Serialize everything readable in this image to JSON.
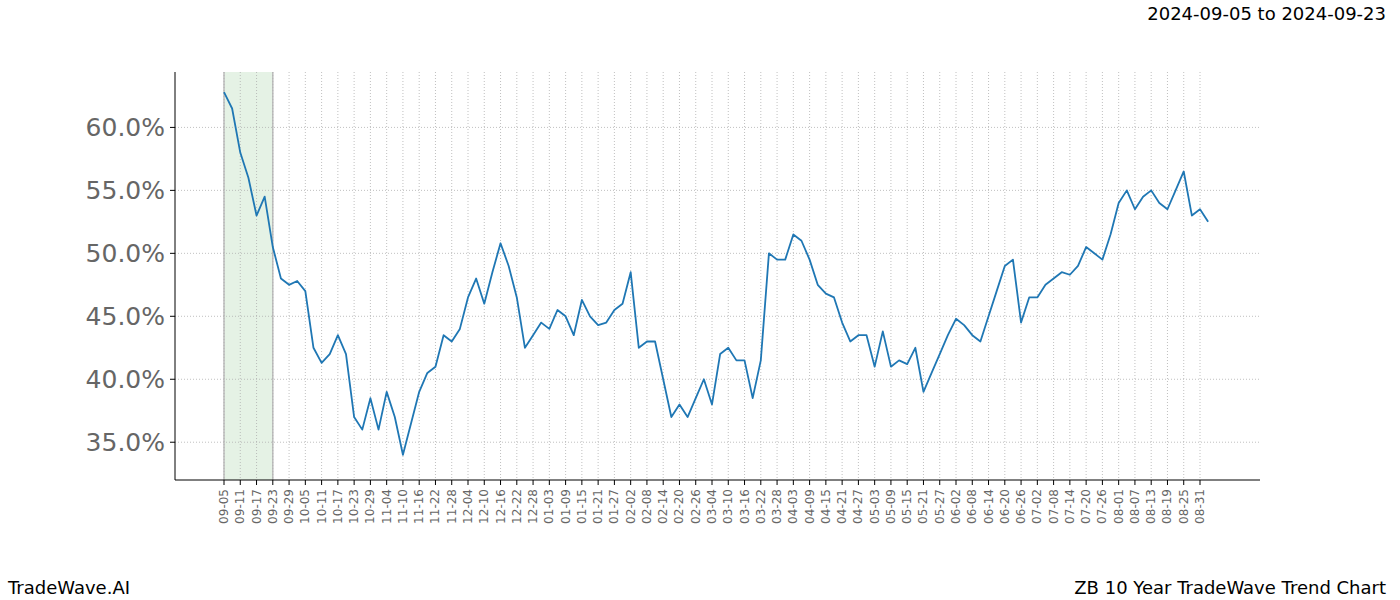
{
  "chart_data": {
    "type": "line",
    "title": "ZB 10 Year TradeWave Trend Chart",
    "subtitle": "2024-09-05 to 2024-09-23",
    "credit": "TradeWave.AI",
    "categories": [
      "09-05",
      null,
      "09-11",
      null,
      "09-17",
      null,
      "09-23",
      null,
      "09-29",
      null,
      "10-05",
      null,
      "10-11",
      null,
      "10-17",
      null,
      "10-23",
      null,
      "10-29",
      null,
      "11-04",
      null,
      "11-10",
      null,
      "11-16",
      null,
      "11-22",
      null,
      "11-28",
      null,
      "12-04",
      null,
      "12-10",
      null,
      "12-16",
      null,
      "12-22",
      null,
      "12-28",
      null,
      "01-03",
      null,
      "01-09",
      null,
      "01-15",
      null,
      "01-21",
      null,
      "01-27",
      null,
      "02-02",
      null,
      "02-08",
      null,
      "02-14",
      null,
      "02-20",
      null,
      "02-26",
      null,
      "03-04",
      null,
      "03-10",
      null,
      "03-16",
      null,
      "03-22",
      null,
      "03-28",
      null,
      "04-03",
      null,
      "04-09",
      null,
      "04-15",
      null,
      "04-21",
      null,
      "04-27",
      null,
      "05-03",
      null,
      "05-09",
      null,
      "05-15",
      null,
      "05-21",
      null,
      "05-27",
      null,
      "06-02",
      null,
      "06-08",
      null,
      "06-14",
      null,
      "06-20",
      null,
      "06-26",
      null,
      "07-02",
      null,
      "07-08",
      null,
      "07-14",
      null,
      "07-20",
      null,
      "07-26",
      null,
      "08-01",
      null,
      "08-07",
      null,
      "08-13",
      null,
      "08-19",
      null,
      "08-25",
      null,
      "08-31",
      null
    ],
    "values": [
      62.8,
      61.5,
      58.0,
      56.0,
      53.0,
      54.5,
      50.5,
      48.0,
      47.5,
      47.8,
      47.0,
      42.5,
      41.3,
      42.0,
      43.5,
      42.0,
      37.0,
      36.0,
      38.5,
      36.0,
      39.0,
      37.0,
      34.0,
      36.5,
      39.0,
      40.5,
      41.0,
      43.5,
      43.0,
      44.0,
      46.5,
      48.0,
      46.0,
      48.5,
      50.8,
      49.0,
      46.5,
      42.5,
      43.5,
      44.5,
      44.0,
      45.5,
      45.0,
      43.5,
      46.3,
      45.0,
      44.3,
      44.5,
      45.5,
      46.0,
      48.5,
      42.5,
      43.0,
      43.0,
      40.0,
      37.0,
      38.0,
      37.0,
      38.5,
      40.0,
      38.0,
      42.0,
      42.5,
      41.5,
      41.5,
      38.5,
      41.5,
      50.0,
      49.5,
      49.5,
      51.5,
      51.0,
      49.5,
      47.5,
      46.8,
      46.5,
      44.5,
      43.0,
      43.5,
      43.5,
      41.0,
      43.8,
      41.0,
      41.5,
      41.2,
      42.5,
      39.0,
      40.5,
      42.0,
      43.5,
      44.8,
      44.3,
      43.5,
      43.0,
      45.0,
      47.0,
      49.0,
      49.5,
      44.5,
      46.5,
      46.5,
      47.5,
      48.0,
      48.5,
      48.3,
      49.0,
      50.5,
      50.0,
      49.5,
      51.5,
      54.0,
      55.0,
      53.5,
      54.5,
      55.0,
      54.0,
      53.5,
      55.0,
      56.5,
      53.0,
      53.5,
      52.5
    ],
    "color": "#1f77b4",
    "highlight": {
      "from": "09-05",
      "to": "09-23",
      "color": "#e5f2e5"
    },
    "ylim": [
      32,
      64.4
    ],
    "yticks": [
      {
        "value": 35,
        "label": "35.0%"
      },
      {
        "value": 40,
        "label": "40.0%"
      },
      {
        "value": 45,
        "label": "45.0%"
      },
      {
        "value": 50,
        "label": "50.0%"
      },
      {
        "value": 55,
        "label": "55.0%"
      },
      {
        "value": 60,
        "label": "60.0%"
      }
    ],
    "grid": true
  }
}
